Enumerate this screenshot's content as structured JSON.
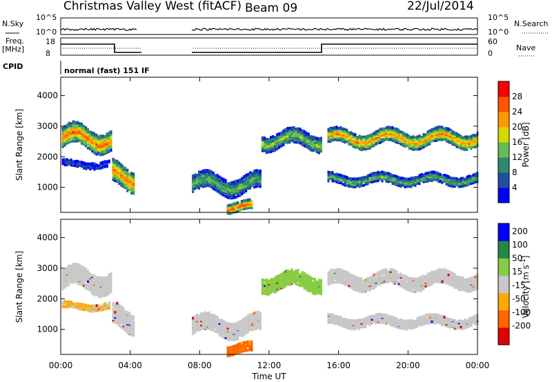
{
  "header": {
    "title": "Christmas Valley West (fitACF)",
    "beam": "Beam 09",
    "date": "22/Jul/2014"
  },
  "strip_noise": {
    "left_label": "N.Sky",
    "right_label": "N.Search",
    "left_ticks": [
      "10^5",
      "10^0"
    ],
    "right_ticks": [
      "10^5",
      "10^0"
    ]
  },
  "strip_freq": {
    "left_label_1": "Freq.",
    "left_label_2": "[MHz]",
    "right_label": "Nave",
    "left_ticks": [
      "18",
      "8"
    ],
    "right_ticks": [
      "60",
      "0"
    ]
  },
  "cpid": {
    "label": "CPID",
    "value": "normal (fast) 151 IF"
  },
  "x_axis": {
    "label": "Time UT",
    "ticks": [
      "00:00",
      "04:00",
      "08:00",
      "12:00",
      "16:00",
      "20:00",
      "00:00"
    ]
  },
  "colors": {
    "power": [
      "#0000ff",
      "#1e4fa0",
      "#2e8a6e",
      "#66bb55",
      "#d8d800",
      "#ff9900",
      "#ff5500",
      "#ff0000"
    ],
    "velocity": [
      "#e00000",
      "#ff6600",
      "#ffaa00",
      "#c8c8c8",
      "#88cc44",
      "#228844",
      "#0000ff"
    ]
  },
  "chart_data": [
    {
      "type": "heatmap",
      "panel": "power",
      "ylabel": "Slant Range [km]",
      "xlabel": "",
      "y_ticks": [
        "1000",
        "2000",
        "3000",
        "4000"
      ],
      "xlim": [
        0,
        24
      ],
      "ylim": [
        180,
        4600
      ],
      "colorbar": {
        "label": "Power [dB]",
        "ticks": [
          "4",
          "8",
          "12",
          "16",
          "20",
          "24",
          "28"
        ],
        "range": [
          0,
          32
        ]
      },
      "features": [
        {
          "t0": 0.0,
          "t1": 2.9,
          "center": 2650,
          "width": 650,
          "peak": 26
        },
        {
          "t0": 0.0,
          "t1": 2.8,
          "center": 1800,
          "width": 200,
          "peak": 6
        },
        {
          "t0": 2.9,
          "t1": 4.2,
          "center": 1400,
          "width": 700,
          "peak": 25
        },
        {
          "t0": 7.5,
          "t1": 11.5,
          "center": 1150,
          "width": 550,
          "peak": 14
        },
        {
          "t0": 9.5,
          "t1": 11.0,
          "center": 400,
          "width": 300,
          "peak": 28
        },
        {
          "t0": 11.5,
          "t1": 15.0,
          "center": 2600,
          "width": 500,
          "peak": 16
        },
        {
          "t0": 15.3,
          "t1": 24.0,
          "center": 2650,
          "width": 450,
          "peak": 24
        },
        {
          "t0": 15.3,
          "t1": 24.0,
          "center": 1300,
          "width": 300,
          "peak": 14
        }
      ]
    },
    {
      "type": "heatmap",
      "panel": "velocity",
      "ylabel": "Slant Range [km]",
      "xlabel": "Time UT",
      "y_ticks": [
        "1000",
        "2000",
        "3000",
        "4000"
      ],
      "xlim": [
        0,
        24
      ],
      "ylim": [
        180,
        4600
      ],
      "colorbar": {
        "label": "Velocity [m s^-1]",
        "ticks": [
          "200",
          "100",
          "50",
          "15",
          "-15",
          "-50",
          "-100",
          "-200"
        ],
        "range": [
          -250,
          250
        ]
      },
      "features": [
        {
          "t0": 0.0,
          "t1": 2.9,
          "center": 2650,
          "width": 650,
          "velocity": 0
        },
        {
          "t0": 0.0,
          "t1": 2.8,
          "center": 1800,
          "width": 200,
          "velocity": -20
        },
        {
          "t0": 2.9,
          "t1": 4.2,
          "center": 1400,
          "width": 700,
          "velocity": 0
        },
        {
          "t0": 7.5,
          "t1": 11.5,
          "center": 1150,
          "width": 550,
          "velocity": 0
        },
        {
          "t0": 9.5,
          "t1": 11.0,
          "center": 400,
          "width": 300,
          "velocity": -60
        },
        {
          "t0": 11.5,
          "t1": 15.0,
          "center": 2600,
          "width": 500,
          "velocity": 30
        },
        {
          "t0": 15.3,
          "t1": 24.0,
          "center": 2650,
          "width": 450,
          "velocity": 0
        },
        {
          "t0": 15.3,
          "t1": 24.0,
          "center": 1300,
          "width": 300,
          "velocity": 0
        }
      ]
    }
  ]
}
